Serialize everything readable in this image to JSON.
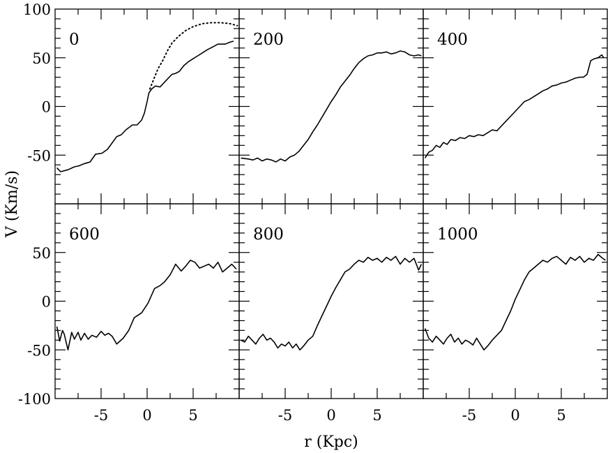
{
  "chart_data": {
    "type": "line",
    "xlabel": "r (Kpc)",
    "ylabel": "V (Km/s)",
    "xlim": [
      -10,
      10
    ],
    "ylim": [
      -100,
      100
    ],
    "layout": "2 rows x 3 columns, shared axes",
    "x_tick_labels": [
      "-5",
      "0",
      "5"
    ],
    "y_tick_labels_top": [
      "100",
      "50",
      "0",
      "-50"
    ],
    "y_tick_labels_bottom": [
      "50",
      "0",
      "-50",
      "-100"
    ],
    "grid": false,
    "line_color": "#000000",
    "panels": [
      {
        "label": "0",
        "series": [
          {
            "style": "solid",
            "x": [
              -9.8,
              -9.4,
              -8.6,
              -7.9,
              -7.4,
              -6.9,
              -6.2,
              -5.6,
              -4.9,
              -4.3,
              -3.3,
              -2.8,
              -2.3,
              -1.6,
              -1.1,
              -0.6,
              -0.3,
              0.0,
              0.2,
              0.5,
              0.9,
              1.4,
              2.0,
              2.7,
              3.1,
              3.5,
              4.0,
              4.5,
              5.0,
              5.5,
              6.0,
              6.5,
              7.1,
              7.7,
              8.1,
              8.5,
              9.0,
              9.4
            ],
            "y": [
              -63,
              -67,
              -65,
              -62,
              -61,
              -59,
              -57,
              -49,
              -48,
              -44,
              -31,
              -29,
              -24,
              -19,
              -19,
              -14,
              -7,
              5,
              14,
              18,
              21,
              20,
              26,
              33,
              34,
              36,
              42,
              46,
              49,
              52,
              55,
              58,
              61,
              64,
              64,
              64,
              66,
              67
            ]
          },
          {
            "style": "dotted",
            "x": [
              0.3,
              0.8,
              1.2,
              1.7,
              2.2,
              2.7,
              3.4,
              4.2,
              5.0,
              6.0,
              7.0,
              8.0,
              9.0,
              9.8
            ],
            "y": [
              18,
              30,
              39,
              47,
              57,
              65,
              72,
              78,
              82,
              85,
              86,
              86,
              85,
              83
            ]
          }
        ]
      },
      {
        "label": "200",
        "series": [
          {
            "style": "solid",
            "x": [
              -9.8,
              -9.0,
              -8.5,
              -8.0,
              -7.5,
              -7.0,
              -6.5,
              -6.0,
              -5.5,
              -5.0,
              -4.5,
              -4.0,
              -3.5,
              -3.0,
              -2.5,
              -2.0,
              -1.5,
              -1.0,
              -0.5,
              0.0,
              0.5,
              1.0,
              1.5,
              2.0,
              2.5,
              3.0,
              3.5,
              4.0,
              4.5,
              5.0,
              5.5,
              6.0,
              6.5,
              7.0,
              7.5,
              8.0,
              8.5,
              9.0,
              9.5,
              9.8
            ],
            "y": [
              -53,
              -54,
              -55,
              -53,
              -56,
              -54,
              -55,
              -57,
              -54,
              -56,
              -52,
              -50,
              -46,
              -40,
              -34,
              -26,
              -19,
              -11,
              -3,
              5,
              12,
              20,
              26,
              32,
              39,
              45,
              49,
              52,
              53,
              55,
              55,
              56,
              54,
              55,
              57,
              56,
              53,
              52,
              53,
              52
            ]
          }
        ]
      },
      {
        "label": "400",
        "series": [
          {
            "style": "solid",
            "x": [
              -9.8,
              -9.4,
              -9.0,
              -8.6,
              -8.2,
              -7.8,
              -7.4,
              -7.0,
              -6.5,
              -6.0,
              -5.5,
              -5.0,
              -4.5,
              -4.0,
              -3.5,
              -3.0,
              -2.5,
              -2.0,
              -1.5,
              -1.0,
              -0.5,
              0.0,
              0.5,
              1.0,
              1.5,
              2.0,
              2.5,
              3.0,
              3.5,
              4.0,
              4.5,
              5.0,
              5.5,
              6.0,
              6.5,
              7.0,
              7.4,
              7.8,
              8.2,
              8.6,
              9.0,
              9.4,
              9.6
            ],
            "y": [
              -53,
              -47,
              -45,
              -40,
              -42,
              -37,
              -39,
              -34,
              -35,
              -32,
              -33,
              -30,
              -31,
              -29,
              -30,
              -27,
              -24,
              -25,
              -20,
              -15,
              -10,
              -5,
              0,
              5,
              7,
              10,
              13,
              16,
              18,
              21,
              22,
              24,
              25,
              27,
              29,
              30,
              30,
              33,
              47,
              49,
              50,
              53,
              50
            ]
          }
        ]
      },
      {
        "label": "600",
        "series": [
          {
            "style": "solid",
            "x": [
              -9.8,
              -9.5,
              -9.2,
              -9.0,
              -8.6,
              -8.2,
              -7.9,
              -7.5,
              -7.2,
              -6.8,
              -6.4,
              -6.0,
              -5.5,
              -5.0,
              -4.6,
              -4.2,
              -3.8,
              -3.3,
              -2.6,
              -2.0,
              -1.4,
              -0.6,
              0.1,
              0.8,
              1.4,
              1.9,
              2.5,
              3.1,
              3.7,
              4.2,
              4.7,
              5.2,
              5.7,
              6.2,
              6.7,
              7.2,
              7.7,
              8.2,
              8.7,
              9.2,
              9.7
            ],
            "y": [
              -26,
              -41,
              -30,
              -34,
              -50,
              -32,
              -39,
              -32,
              -40,
              -33,
              -39,
              -35,
              -37,
              -31,
              -35,
              -33,
              -36,
              -44,
              -38,
              -30,
              -17,
              -12,
              -2,
              13,
              16,
              20,
              27,
              38,
              31,
              36,
              42,
              40,
              34,
              36,
              38,
              34,
              40,
              30,
              34,
              38,
              33
            ]
          }
        ]
      },
      {
        "label": "800",
        "series": [
          {
            "style": "solid",
            "x": [
              -9.8,
              -9.4,
              -9.0,
              -8.6,
              -8.2,
              -7.8,
              -7.4,
              -7.0,
              -6.6,
              -6.2,
              -5.8,
              -5.4,
              -5.0,
              -4.6,
              -4.2,
              -3.8,
              -3.4,
              -3.0,
              -2.5,
              -2.0,
              -1.5,
              -1.0,
              -0.5,
              0.0,
              0.5,
              1.0,
              1.5,
              2.0,
              2.5,
              3.0,
              3.5,
              4.0,
              4.5,
              5.0,
              5.5,
              6.0,
              6.5,
              7.0,
              7.5,
              8.0,
              8.5,
              9.0,
              9.5,
              9.8
            ],
            "y": [
              -40,
              -42,
              -36,
              -40,
              -44,
              -38,
              -34,
              -40,
              -38,
              -42,
              -48,
              -44,
              -46,
              -42,
              -48,
              -44,
              -50,
              -46,
              -40,
              -36,
              -25,
              -15,
              -5,
              5,
              14,
              22,
              30,
              33,
              38,
              42,
              40,
              45,
              42,
              44,
              40,
              45,
              42,
              46,
              38,
              44,
              40,
              44,
              32,
              38
            ]
          }
        ]
      },
      {
        "label": "1000",
        "series": [
          {
            "style": "solid",
            "x": [
              -9.8,
              -9.4,
              -9.0,
              -8.6,
              -8.2,
              -7.8,
              -7.4,
              -7.0,
              -6.6,
              -6.2,
              -5.8,
              -5.4,
              -5.0,
              -4.6,
              -4.2,
              -3.8,
              -3.4,
              -3.0,
              -2.5,
              -2.0,
              -1.5,
              -1.0,
              -0.5,
              0.0,
              0.5,
              1.0,
              1.5,
              2.0,
              2.5,
              3.0,
              3.5,
              4.0,
              4.5,
              5.0,
              5.5,
              6.0,
              6.5,
              7.0,
              7.5,
              8.0,
              8.5,
              9.0,
              9.5,
              9.8
            ],
            "y": [
              -28,
              -38,
              -42,
              -36,
              -40,
              -44,
              -38,
              -34,
              -42,
              -38,
              -44,
              -40,
              -42,
              -45,
              -38,
              -44,
              -50,
              -46,
              -40,
              -35,
              -30,
              -20,
              -10,
              2,
              12,
              22,
              30,
              34,
              38,
              42,
              40,
              44,
              46,
              42,
              38,
              45,
              42,
              46,
              40,
              44,
              42,
              48,
              44,
              42
            ]
          }
        ]
      }
    ]
  }
}
